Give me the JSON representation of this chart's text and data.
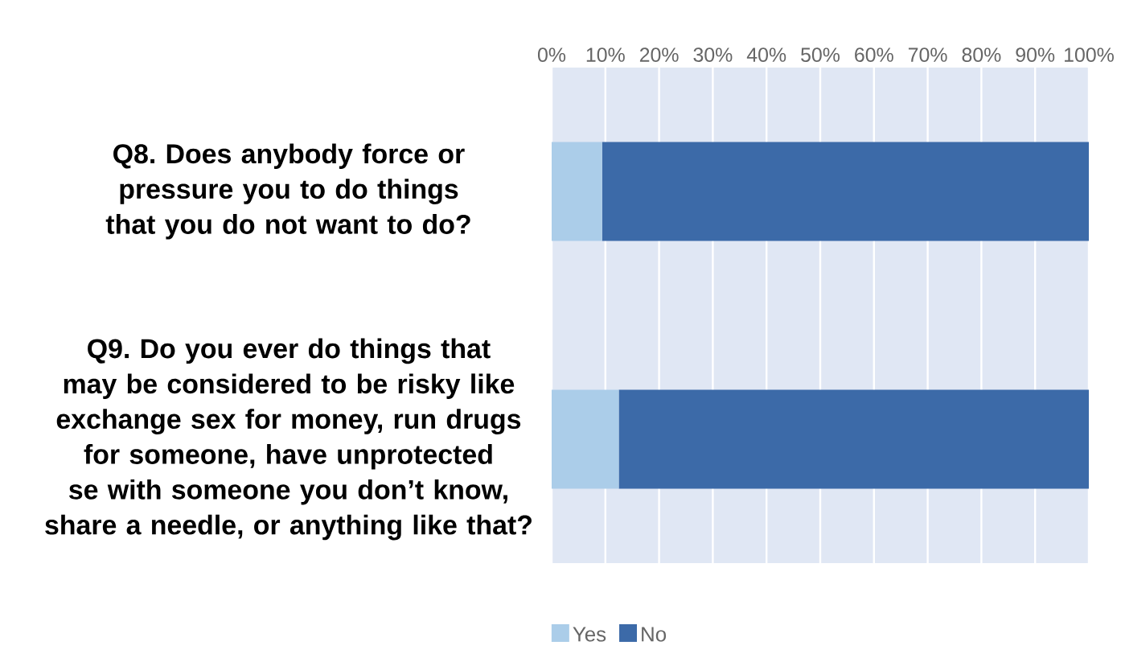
{
  "chart_data": {
    "type": "bar",
    "orientation": "horizontal",
    "stacked": true,
    "categories": [
      "Q8. Does anybody force or pressure you to do things that you do not want to do?",
      "Q9. Do you ever do things that may be considered to be risky like exchange sex for money, run drugs for someone, have unprotected se with someone you don’t know, share a needle, or anything like that?"
    ],
    "series": [
      {
        "name": "Yes",
        "color": "#abcde9",
        "values": [
          9.4,
          12.5
        ]
      },
      {
        "name": "No",
        "color": "#3c6aa8",
        "values": [
          90.6,
          87.5
        ]
      }
    ],
    "xlim": [
      0,
      100
    ],
    "xticks": [
      {
        "value": 0,
        "label": "0%"
      },
      {
        "value": 10,
        "label": "10%"
      },
      {
        "value": 20,
        "label": "20%"
      },
      {
        "value": 30,
        "label": "30%"
      },
      {
        "value": 40,
        "label": "40%"
      },
      {
        "value": 50,
        "label": "50%"
      },
      {
        "value": 60,
        "label": "60%"
      },
      {
        "value": 70,
        "label": "70%"
      },
      {
        "value": 80,
        "label": "80%"
      },
      {
        "value": 90,
        "label": "90%"
      },
      {
        "value": 100,
        "label": "100%"
      }
    ],
    "grid": "x",
    "legend": "bottom"
  }
}
